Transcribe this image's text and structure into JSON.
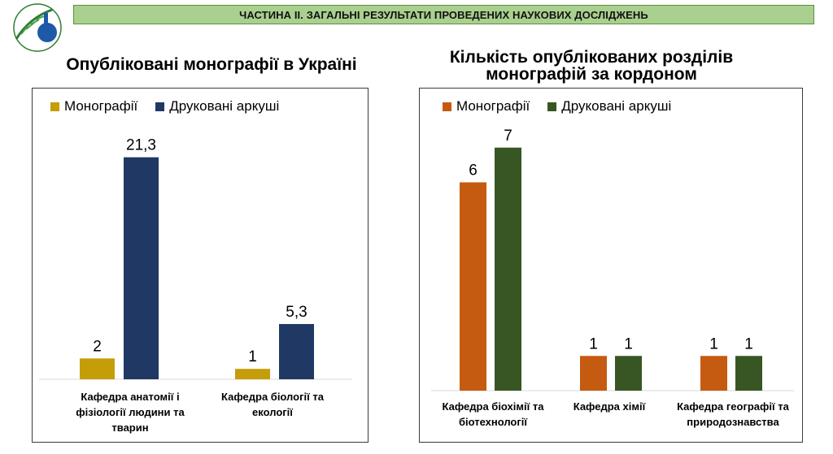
{
  "header": {
    "banner": "ЧАСТИНА ІІ. ЗАГАЛЬНІ РЕЗУЛЬТАТИ ПРОВЕДЕНИХ НАУКОВИХ ДОСЛІДЖЕНЬ"
  },
  "colors": {
    "banner_bg": "#a9d08e",
    "left_mono": "#c59d09",
    "left_sheets": "#1f3864",
    "right_mono": "#c55a11",
    "right_sheets": "#375623"
  },
  "chart_data": [
    {
      "type": "bar",
      "title": "Опубліковані монографії в Україні",
      "categories": [
        "Кафедра анатомії і фізіології людини та тварин",
        "Кафедра біології та екології"
      ],
      "series": [
        {
          "name": "Монографії",
          "values": [
            2,
            1
          ],
          "labels": [
            "2",
            "1"
          ]
        },
        {
          "name": "Друковані аркуші",
          "values": [
            21.3,
            5.3
          ],
          "labels": [
            "21,3",
            "5,3"
          ]
        }
      ],
      "ylim": [
        0,
        24
      ],
      "legend": "top-left",
      "grid": false
    },
    {
      "type": "bar",
      "title": "Кількість опублікованих розділів монографій за кордоном",
      "categories": [
        "Кафедра біохімії та біотехнології",
        "Кафедра хімії",
        "Кафедра географії та природознавства"
      ],
      "series": [
        {
          "name": "Монографії",
          "values": [
            6,
            1,
            1
          ],
          "labels": [
            "6",
            "1",
            "1"
          ]
        },
        {
          "name": "Друковані аркуші",
          "values": [
            7,
            1,
            1
          ],
          "labels": [
            "7",
            "1",
            "1"
          ]
        }
      ],
      "ylim": [
        0,
        8
      ],
      "legend": "top-left",
      "grid": false
    }
  ]
}
